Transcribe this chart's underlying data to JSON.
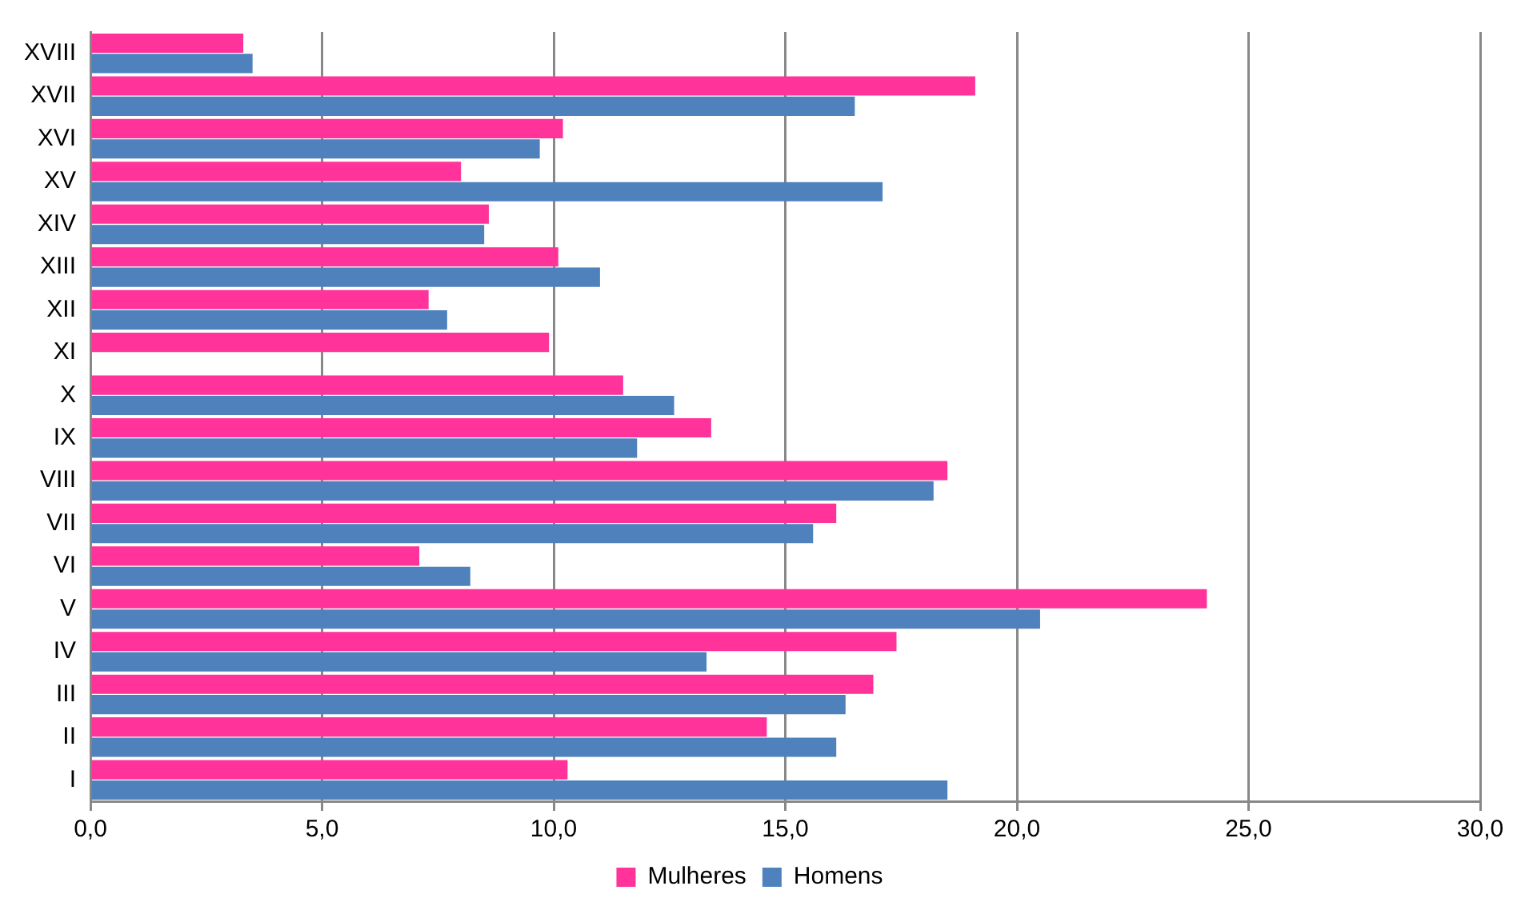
{
  "chart_data": {
    "type": "bar",
    "orientation": "horizontal",
    "categories": [
      "XVIII",
      "XVII",
      "XVI",
      "XV",
      "XIV",
      "XIII",
      "XII",
      "XI",
      "X",
      "IX",
      "VIII",
      "VII",
      "VI",
      "V",
      "IV",
      "III",
      "II",
      "I"
    ],
    "series": [
      {
        "name": "Mulheres",
        "color": "#ff3399",
        "values": [
          3.3,
          19.1,
          10.2,
          8.0,
          8.6,
          10.1,
          7.3,
          9.9,
          11.5,
          13.4,
          18.5,
          16.1,
          7.1,
          24.1,
          17.4,
          16.9,
          14.6,
          10.3
        ]
      },
      {
        "name": "Homens",
        "color": "#4f81bd",
        "values": [
          3.5,
          16.5,
          9.7,
          17.1,
          8.5,
          11.0,
          7.7,
          null,
          12.6,
          11.8,
          18.2,
          15.6,
          8.2,
          20.5,
          13.3,
          16.3,
          16.1,
          18.5
        ]
      }
    ],
    "xlim": [
      0,
      30
    ],
    "xticks": [
      {
        "value": 0,
        "label": "0,0"
      },
      {
        "value": 5,
        "label": "5,0"
      },
      {
        "value": 10,
        "label": "10,0"
      },
      {
        "value": 15,
        "label": "15,0"
      },
      {
        "value": 20,
        "label": "20,0"
      },
      {
        "value": 25,
        "label": "25,0"
      },
      {
        "value": 30,
        "label": "30,0"
      }
    ],
    "grid": "x",
    "legend": "bottom"
  }
}
